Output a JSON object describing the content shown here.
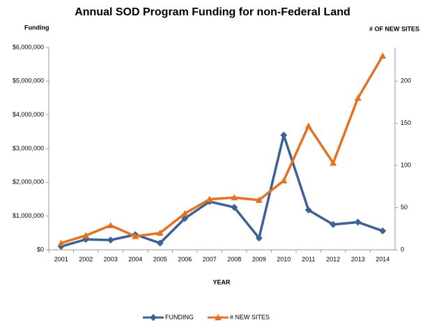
{
  "chart_data": {
    "type": "line",
    "title": "Annual SOD Program Funding for non-Federal Land",
    "y_label": "Funding",
    "y2_label": "# OF NEW SITES",
    "x_label": "YEAR",
    "categories": [
      "2001",
      "2002",
      "2003",
      "2004",
      "2005",
      "2006",
      "2007",
      "2008",
      "2009",
      "2010",
      "2011",
      "2012",
      "2013",
      "2014"
    ],
    "series": [
      {
        "name": "FUNDING",
        "color": "#3d6195",
        "values": [
          100000,
          310000,
          290000,
          450000,
          200000,
          930000,
          1430000,
          1260000,
          350000,
          3400000,
          1180000,
          750000,
          820000,
          560000
        ]
      },
      {
        "name": "# NEW SITES",
        "color": "#e37222",
        "axis": "y2",
        "values": [
          8,
          17,
          29,
          16,
          20,
          43,
          60,
          62,
          59,
          82,
          147,
          103,
          180,
          230
        ]
      }
    ],
    "ylim": [
      0,
      6000000
    ],
    "yticks": [
      {
        "value": 0,
        "label": "$0"
      },
      {
        "value": 1000000,
        "label": "$1,000,000"
      },
      {
        "value": 2000000,
        "label": "$2,000,000"
      },
      {
        "value": 3000000,
        "label": "$3,000,000"
      },
      {
        "value": 4000000,
        "label": "$4,000,000"
      },
      {
        "value": 5000000,
        "label": "$5,000,000"
      },
      {
        "value": 6000000,
        "label": "$6,000,000"
      }
    ],
    "y2lim": [
      0,
      240
    ],
    "y2ticks": [
      0,
      50,
      100,
      150,
      200
    ],
    "grid": false
  }
}
